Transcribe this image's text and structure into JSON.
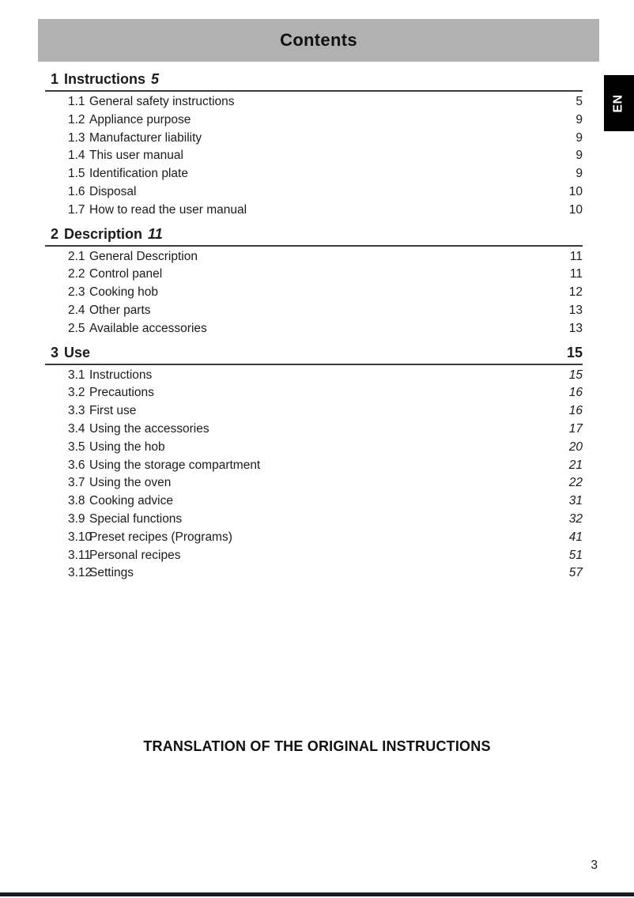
{
  "page": {
    "header_title": "Contents",
    "language_tab": "EN",
    "footer_note": "TRANSLATION OF THE ORIGINAL INSTRUCTIONS",
    "page_number": "3"
  },
  "toc": {
    "sections": [
      {
        "number": "1",
        "title": "Instructions",
        "page": "5",
        "page_position": "inline",
        "items_page_style": "normal",
        "items": [
          {
            "number": "1.1",
            "title": "General safety instructions",
            "page": "5"
          },
          {
            "number": "1.2",
            "title": "Appliance purpose",
            "page": "9"
          },
          {
            "number": "1.3",
            "title": "Manufacturer liability",
            "page": "9"
          },
          {
            "number": "1.4",
            "title": "This user manual",
            "page": "9"
          },
          {
            "number": "1.5",
            "title": "Identification plate",
            "page": "9"
          },
          {
            "number": "1.6",
            "title": "Disposal",
            "page": "10"
          },
          {
            "number": "1.7",
            "title": "How to read the user manual",
            "page": "10"
          }
        ]
      },
      {
        "number": "2",
        "title": "Description",
        "page": "11",
        "page_position": "inline",
        "items_page_style": "normal",
        "items": [
          {
            "number": "2.1",
            "title": "General Description",
            "page": "11"
          },
          {
            "number": "2.2",
            "title": "Control panel",
            "page": "11"
          },
          {
            "number": "2.3",
            "title": "Cooking hob",
            "page": "12"
          },
          {
            "number": "2.4",
            "title": "Other parts",
            "page": "13"
          },
          {
            "number": "2.5",
            "title": "Available accessories",
            "page": "13"
          }
        ]
      },
      {
        "number": "3",
        "title": "Use",
        "page": "15",
        "page_position": "right",
        "items_page_style": "italic",
        "items": [
          {
            "number": "3.1",
            "title": "Instructions",
            "page": "15"
          },
          {
            "number": "3.2",
            "title": "Precautions",
            "page": "16"
          },
          {
            "number": "3.3",
            "title": "First use",
            "page": "16"
          },
          {
            "number": "3.4",
            "title": "Using the accessories",
            "page": "17"
          },
          {
            "number": "3.5",
            "title": "Using the hob",
            "page": "20"
          },
          {
            "number": "3.6",
            "title": "Using the storage compartment",
            "page": "21"
          },
          {
            "number": "3.7",
            "title": "Using the oven",
            "page": "22"
          },
          {
            "number": "3.8",
            "title": "Cooking advice",
            "page": "31"
          },
          {
            "number": "3.9",
            "title": "Special functions",
            "page": "32"
          },
          {
            "number": "3.10",
            "title": "Preset recipes (Programs)",
            "page": "41"
          },
          {
            "number": "3.11",
            "title": "Personal recipes",
            "page": "51"
          },
          {
            "number": "3.12",
            "title": "Settings",
            "page": "57"
          }
        ]
      }
    ]
  }
}
